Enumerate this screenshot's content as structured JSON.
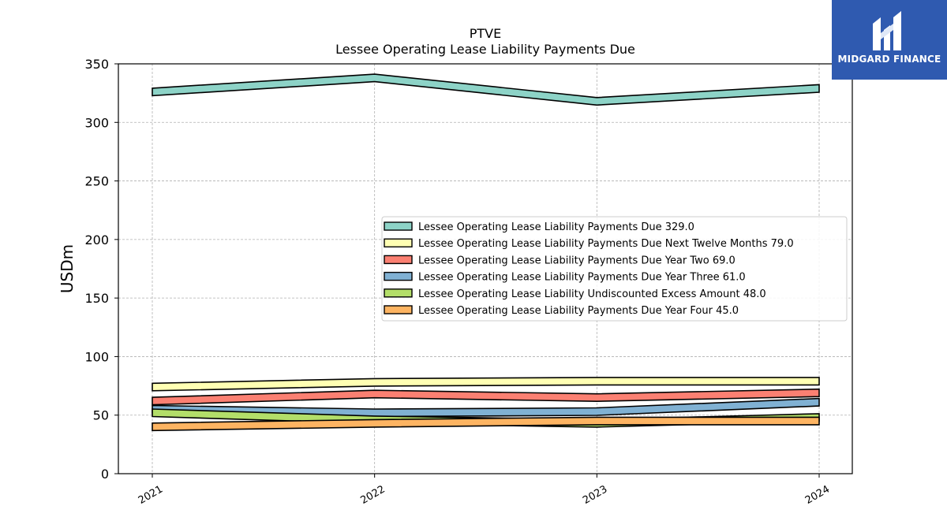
{
  "chart_data": {
    "type": "area",
    "title": "PTVE",
    "subtitle": "Lessee Operating Lease Liability Payments Due",
    "ylabel": "USDm",
    "xlabel": "",
    "ylim": [
      0,
      350
    ],
    "yticks": [
      0,
      50,
      100,
      150,
      200,
      250,
      300,
      350
    ],
    "grid": true,
    "legend_position": "center-right",
    "categories": [
      "2021",
      "2022",
      "2023",
      "2024"
    ],
    "series": [
      {
        "name": "Lessee Operating Lease Liability Payments Due",
        "label": "329.0",
        "color": "#8dd3c7",
        "values": [
          326,
          338,
          318,
          329
        ]
      },
      {
        "name": "Lessee Operating Lease Liability Payments Due Next Twelve Months",
        "label": "79.0",
        "color": "#ffffb3",
        "values": [
          74,
          78,
          79,
          79
        ]
      },
      {
        "name": "Lessee Operating Lease Liability Payments Due Year Two",
        "label": "69.0",
        "color": "#fb8072",
        "values": [
          62,
          68,
          65,
          69
        ]
      },
      {
        "name": "Lessee Operating Lease Liability Payments Due Year Three",
        "label": "61.0",
        "color": "#80b1d3",
        "values": [
          55,
          52,
          53,
          61
        ]
      },
      {
        "name": "Lessee Operating Lease Liability Undiscounted Excess Amount",
        "label": "48.0",
        "color": "#b3de69",
        "values": [
          52,
          46,
          43,
          48
        ]
      },
      {
        "name": "Lessee Operating Lease Liability Payments Due Year Four",
        "label": "45.0",
        "color": "#fdb462",
        "values": [
          40,
          43,
          45,
          45
        ]
      }
    ]
  },
  "logo": {
    "brand": "MIDGARD FINANCE"
  }
}
